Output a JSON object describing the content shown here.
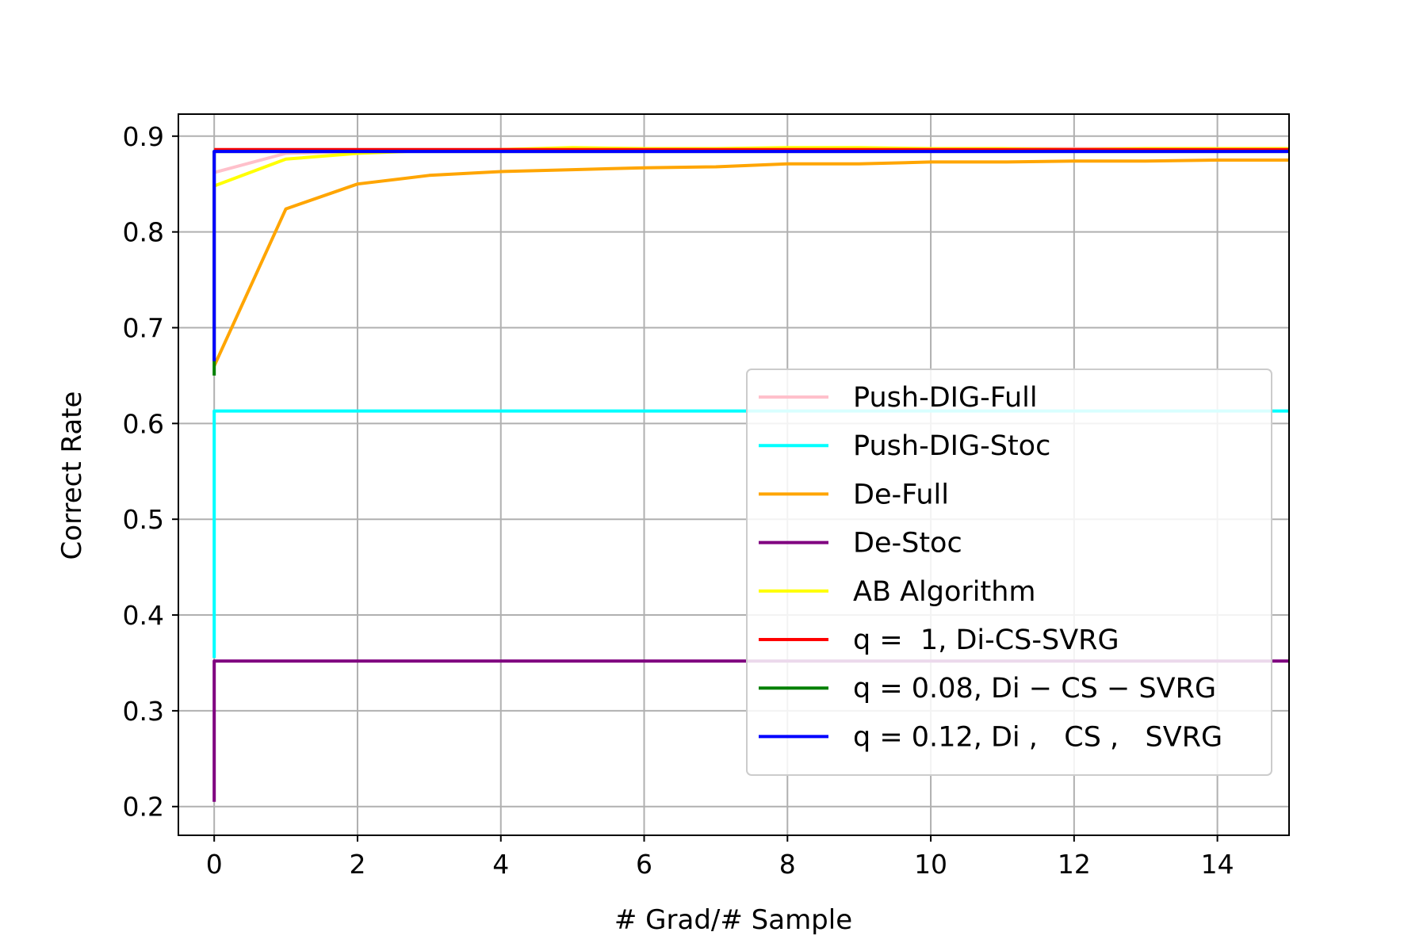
{
  "chart_data": {
    "type": "line",
    "xlabel": "# Grad/# Sample",
    "ylabel": "Correct Rate",
    "xlim": [
      -0.5,
      15
    ],
    "ylim": [
      0.17,
      0.923
    ],
    "xticks": [
      0,
      2,
      4,
      6,
      8,
      10,
      12,
      14
    ],
    "xtick_labels": [
      "0",
      "2",
      "4",
      "6",
      "8",
      "10",
      "12",
      "14"
    ],
    "yticks": [
      0.2,
      0.3,
      0.4,
      0.5,
      0.6,
      0.7,
      0.8,
      0.9
    ],
    "ytick_labels": [
      "0.2",
      "0.3",
      "0.4",
      "0.5",
      "0.6",
      "0.7",
      "0.8",
      "0.9"
    ],
    "grid": true,
    "legend_position": "center-right",
    "series": [
      {
        "name": "Push-DIG-Full",
        "color": "#ffc0cb",
        "points": [
          [
            0,
            0.862
          ],
          [
            1,
            0.882
          ],
          [
            2,
            0.884
          ],
          [
            3,
            0.885
          ],
          [
            4,
            0.886
          ],
          [
            5,
            0.887
          ],
          [
            6,
            0.887
          ],
          [
            7,
            0.887
          ],
          [
            8,
            0.887
          ],
          [
            9,
            0.887
          ],
          [
            10,
            0.887
          ],
          [
            11,
            0.887
          ],
          [
            12,
            0.887
          ],
          [
            13,
            0.887
          ],
          [
            14,
            0.887
          ],
          [
            15,
            0.887
          ]
        ]
      },
      {
        "name": "Push-DIG-Stoc",
        "color": "#00ffff",
        "points": [
          [
            0,
            0.355
          ],
          [
            0,
            0.613
          ],
          [
            15,
            0.613
          ]
        ]
      },
      {
        "name": "De-Full",
        "color": "#ffa500",
        "points": [
          [
            0,
            0.66
          ],
          [
            1,
            0.824
          ],
          [
            2,
            0.85
          ],
          [
            3,
            0.859
          ],
          [
            4,
            0.863
          ],
          [
            5,
            0.865
          ],
          [
            6,
            0.867
          ],
          [
            7,
            0.868
          ],
          [
            8,
            0.871
          ],
          [
            9,
            0.871
          ],
          [
            10,
            0.873
          ],
          [
            11,
            0.873
          ],
          [
            12,
            0.874
          ],
          [
            13,
            0.874
          ],
          [
            14,
            0.875
          ],
          [
            15,
            0.875
          ]
        ]
      },
      {
        "name": "De-Stoc",
        "color": "#800080",
        "points": [
          [
            0,
            0.205
          ],
          [
            0,
            0.352
          ],
          [
            15,
            0.352
          ]
        ]
      },
      {
        "name": "AB Algorithm",
        "color": "#ffff00",
        "points": [
          [
            0,
            0.848
          ],
          [
            1,
            0.876
          ],
          [
            2,
            0.882
          ],
          [
            3,
            0.885
          ],
          [
            4,
            0.886
          ],
          [
            5,
            0.888
          ],
          [
            6,
            0.887
          ],
          [
            7,
            0.887
          ],
          [
            8,
            0.888
          ],
          [
            9,
            0.888
          ],
          [
            10,
            0.887
          ],
          [
            11,
            0.887
          ],
          [
            12,
            0.886
          ],
          [
            13,
            0.887
          ],
          [
            14,
            0.887
          ],
          [
            15,
            0.887
          ]
        ]
      },
      {
        "name": "q =  1, Di-CS-SVRG",
        "color": "#ff0000",
        "points": [
          [
            0,
            0.886
          ],
          [
            15,
            0.886
          ]
        ]
      },
      {
        "name": "q = 0.08, Di − CS − SVRG",
        "color": "#008000",
        "points": [
          [
            0,
            0.65
          ],
          [
            0,
            0.884
          ],
          [
            15,
            0.884
          ]
        ]
      },
      {
        "name": "q = 0.12, Di ,   CS ,   SVRG",
        "color": "#0000ff",
        "points": [
          [
            0,
            0.665
          ],
          [
            0,
            0.884
          ],
          [
            15,
            0.884
          ]
        ]
      }
    ]
  }
}
